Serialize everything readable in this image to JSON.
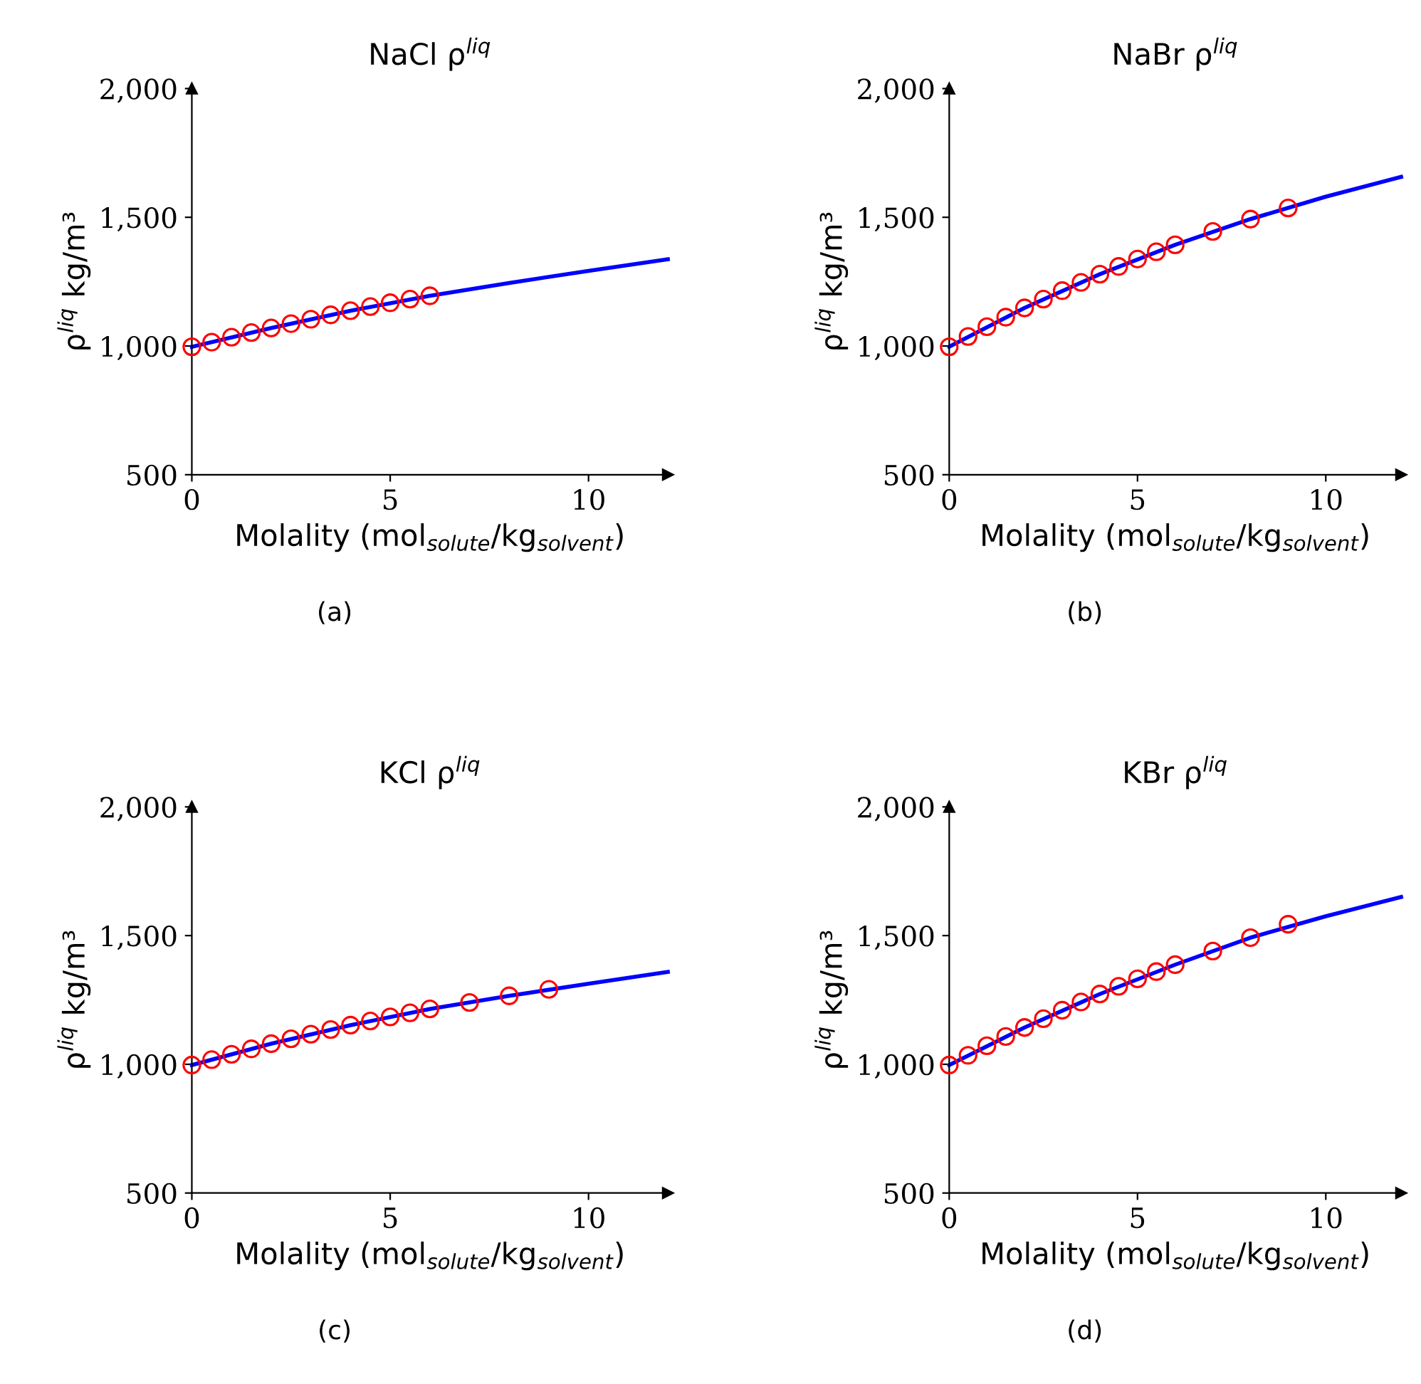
{
  "chart_data": [
    {
      "type": "line",
      "title": "NaCl ρ$^{liq}$",
      "xlabel": "Molality (mol$_{solute}$/kg$_{solvent}$)",
      "ylabel": "ρ$^{liq}$ kg/m³",
      "xlim": [
        0,
        12
      ],
      "ylim": [
        500,
        2000
      ],
      "xticks": [
        0,
        5,
        10
      ],
      "yticks": [
        {
          "value": 500,
          "label": "500"
        },
        {
          "value": 1000,
          "label": "1,000"
        },
        {
          "value": 1500,
          "label": "1,500"
        },
        {
          "value": 2000,
          "label": "2,000"
        }
      ],
      "grid": false,
      "legend": false,
      "annotations": [
        "(a)"
      ],
      "series": [
        {
          "type": "line",
          "color": "#0000ff",
          "marker": "none",
          "x": [
            0,
            2,
            4,
            6,
            8,
            10,
            12
          ],
          "values": [
            997,
            1070,
            1137,
            1195,
            1245,
            1292,
            1337
          ]
        },
        {
          "type": "scatter",
          "color": "#ff0000",
          "marker": "circle",
          "x": [
            0,
            0.5,
            1,
            1.5,
            2,
            2.5,
            3,
            3.5,
            4,
            4.5,
            5,
            5.5,
            6
          ],
          "values": [
            997,
            1015,
            1034,
            1052,
            1070,
            1087,
            1104,
            1121,
            1137,
            1153,
            1168,
            1182,
            1195
          ]
        }
      ]
    },
    {
      "type": "line",
      "title": "NaBr ρ$^{liq}$",
      "xlabel": "Molality (mol$_{solute}$/kg$_{solvent}$)",
      "ylabel": "ρ$^{liq}$ kg/m³",
      "xlim": [
        0,
        12
      ],
      "ylim": [
        500,
        2000
      ],
      "xticks": [
        0,
        5,
        10
      ],
      "yticks": [
        {
          "value": 500,
          "label": "500"
        },
        {
          "value": 1000,
          "label": "1,000"
        },
        {
          "value": 1500,
          "label": "1,500"
        },
        {
          "value": 2000,
          "label": "2,000"
        }
      ],
      "grid": false,
      "legend": false,
      "annotations": [
        "(b)"
      ],
      "series": [
        {
          "type": "line",
          "color": "#0000ff",
          "marker": "none",
          "x": [
            0,
            2,
            4,
            6,
            8,
            10,
            12
          ],
          "values": [
            997,
            1148,
            1279,
            1393,
            1493,
            1580,
            1657
          ]
        },
        {
          "type": "scatter",
          "color": "#ff0000",
          "marker": "circle",
          "x": [
            0,
            0.5,
            1,
            1.5,
            2,
            2.5,
            3,
            3.5,
            4,
            4.5,
            5,
            5.5,
            6,
            7,
            8,
            9
          ],
          "values": [
            997,
            1037,
            1075,
            1112,
            1148,
            1182,
            1215,
            1247,
            1279,
            1309,
            1338,
            1366,
            1393,
            1445,
            1493,
            1536
          ]
        }
      ]
    },
    {
      "type": "line",
      "title": "KCl ρ$^{liq}$",
      "xlabel": "Molality (mol$_{solute}$/kg$_{solvent}$)",
      "ylabel": "ρ$^{liq}$ kg/m³",
      "xlim": [
        0,
        12
      ],
      "ylim": [
        500,
        2000
      ],
      "xticks": [
        0,
        5,
        10
      ],
      "yticks": [
        {
          "value": 500,
          "label": "500"
        },
        {
          "value": 1000,
          "label": "1,000"
        },
        {
          "value": 1500,
          "label": "1,500"
        },
        {
          "value": 2000,
          "label": "2,000"
        }
      ],
      "grid": false,
      "legend": false,
      "annotations": [
        "(c)"
      ],
      "series": [
        {
          "type": "line",
          "color": "#0000ff",
          "marker": "none",
          "x": [
            0,
            2,
            4,
            6,
            8,
            10,
            12
          ],
          "values": [
            997,
            1080,
            1152,
            1215,
            1266,
            1313,
            1359
          ]
        },
        {
          "type": "scatter",
          "color": "#ff0000",
          "marker": "circle",
          "x": [
            0,
            0.5,
            1,
            1.5,
            2,
            2.5,
            3,
            3.5,
            4,
            4.5,
            5,
            5.5,
            6,
            7,
            8,
            9
          ],
          "values": [
            997,
            1018,
            1039,
            1060,
            1080,
            1099,
            1117,
            1135,
            1152,
            1168,
            1184,
            1200,
            1215,
            1240,
            1266,
            1291
          ]
        }
      ]
    },
    {
      "type": "line",
      "title": "KBr ρ$^{liq}$",
      "xlabel": "Molality (mol$_{solute}$/kg$_{solvent}$)",
      "ylabel": "ρ$^{liq}$ kg/m³",
      "xlim": [
        0,
        12
      ],
      "ylim": [
        500,
        2000
      ],
      "xticks": [
        0,
        5,
        10
      ],
      "yticks": [
        {
          "value": 500,
          "label": "500"
        },
        {
          "value": 1000,
          "label": "1,000"
        },
        {
          "value": 1500,
          "label": "1,500"
        },
        {
          "value": 2000,
          "label": "2,000"
        }
      ],
      "grid": false,
      "legend": false,
      "annotations": [
        "(d)"
      ],
      "series": [
        {
          "type": "line",
          "color": "#0000ff",
          "marker": "none",
          "x": [
            0,
            2,
            4,
            6,
            8,
            10,
            12
          ],
          "values": [
            997,
            1143,
            1273,
            1387,
            1492,
            1575,
            1650
          ]
        },
        {
          "type": "scatter",
          "color": "#ff0000",
          "marker": "circle",
          "x": [
            0,
            0.5,
            1,
            1.5,
            2,
            2.5,
            3,
            3.5,
            4,
            4.5,
            5,
            5.5,
            6,
            7,
            8,
            9
          ],
          "values": [
            997,
            1035,
            1072,
            1108,
            1143,
            1177,
            1210,
            1242,
            1273,
            1303,
            1332,
            1360,
            1387,
            1440,
            1492,
            1544
          ]
        }
      ]
    }
  ]
}
